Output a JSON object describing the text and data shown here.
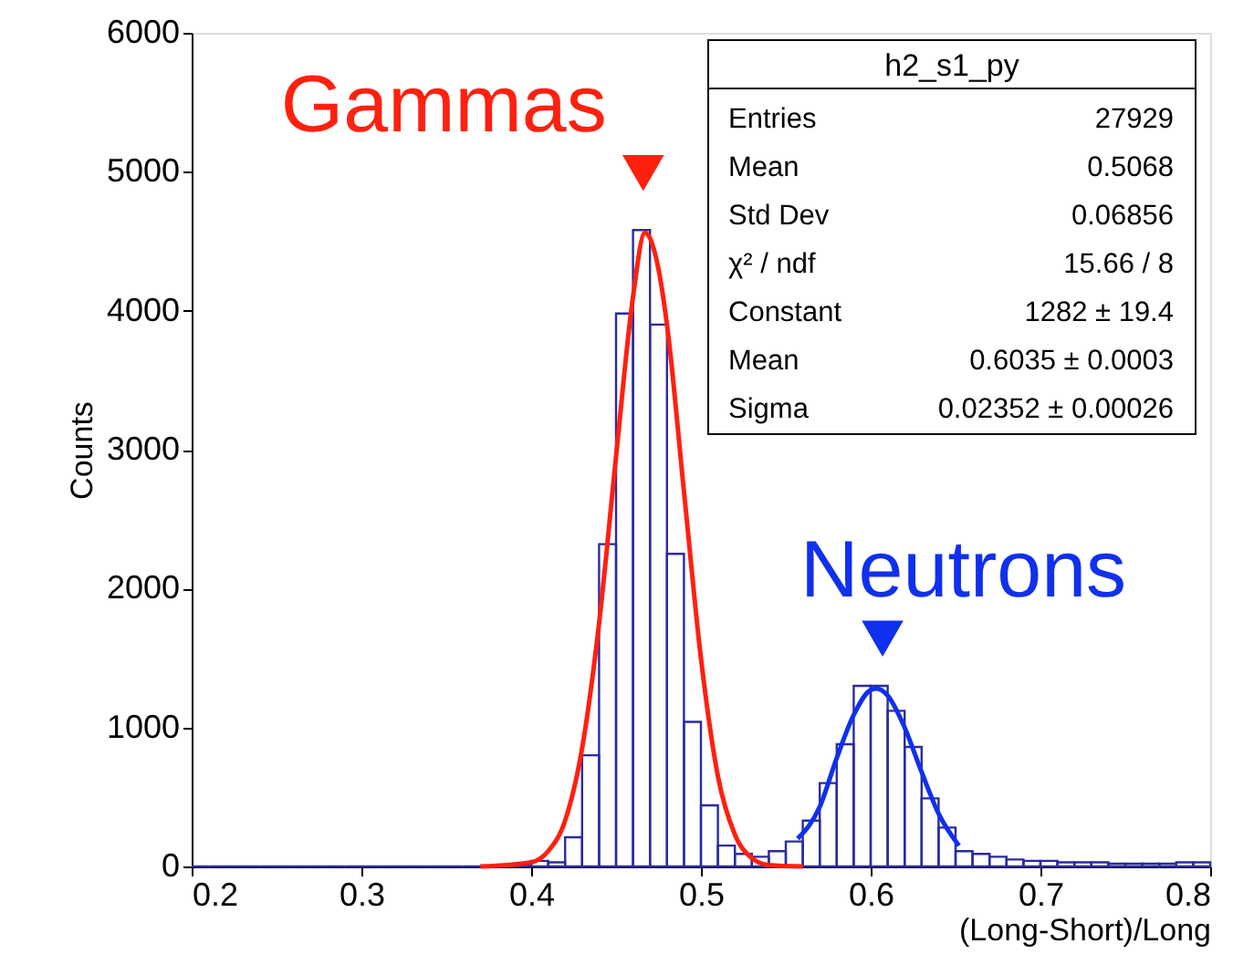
{
  "chart_data": {
    "type": "histogram",
    "xlabel": "(Long-Short)/Long",
    "ylabel": "Counts",
    "bins": [
      0.2,
      0.21,
      0.22,
      0.23,
      0.24,
      0.25,
      0.26,
      0.27,
      0.28,
      0.29,
      0.3,
      0.31,
      0.32,
      0.33,
      0.34,
      0.35,
      0.36,
      0.37,
      0.38,
      0.39,
      0.4,
      0.41,
      0.42,
      0.43,
      0.44,
      0.45,
      0.46,
      0.47,
      0.48,
      0.49,
      0.5,
      0.51,
      0.52,
      0.53,
      0.54,
      0.55,
      0.56,
      0.57,
      0.58,
      0.59,
      0.6,
      0.61,
      0.62,
      0.63,
      0.64,
      0.65,
      0.66,
      0.67,
      0.68,
      0.69,
      0.7,
      0.71,
      0.72,
      0.73,
      0.74,
      0.75,
      0.76,
      0.77,
      0.78,
      0.79,
      0.8
    ],
    "values": [
      0,
      0,
      0,
      0,
      0,
      0,
      0,
      0,
      0,
      0,
      0,
      0,
      0,
      0,
      0,
      0,
      0,
      0,
      0,
      10,
      40,
      30,
      210,
      800,
      2320,
      3980,
      4580,
      3900,
      2250,
      1040,
      440,
      150,
      90,
      70,
      110,
      180,
      330,
      600,
      880,
      1300,
      1300,
      1120,
      860,
      490,
      280,
      110,
      90,
      70,
      50,
      40,
      40,
      30,
      30,
      30,
      20,
      20,
      20,
      20,
      30,
      30
    ],
    "color": "#2b2b9e",
    "series": [
      {
        "type": "line",
        "color": "#ff2010",
        "x": [
          0.37,
          0.4,
          0.41,
          0.42,
          0.43,
          0.44,
          0.45,
          0.46,
          0.467,
          0.475,
          0.48,
          0.49,
          0.5,
          0.51,
          0.52,
          0.53,
          0.54,
          0.56
        ],
        "values": [
          0,
          30,
          110,
          330,
          850,
          1750,
          2950,
          4100,
          4560,
          4300,
          3900,
          2700,
          1500,
          650,
          230,
          60,
          10,
          0
        ]
      },
      {
        "type": "line",
        "color": "#1030ee",
        "x": [
          0.557,
          0.57,
          0.58,
          0.59,
          0.6,
          0.6035,
          0.61,
          0.62,
          0.63,
          0.64,
          0.652
        ],
        "values": [
          200,
          430,
          780,
          1090,
          1270,
          1280,
          1230,
          1000,
          680,
          380,
          150
        ]
      }
    ],
    "annotations": [
      {
        "text": "Gammas",
        "x": 0.466,
        "y": 4990
      },
      {
        "text": "Neutrons",
        "x": 0.607,
        "y": 1640
      },
      "h2_s1_py",
      "Entries",
      "27929",
      "Mean",
      "0.5068",
      "Std Dev",
      "0.06856",
      "χ² / ndf",
      "15.66 / 8",
      "Constant",
      "1282 ± 19.4",
      "Mean",
      "0.6035 ± 0.0003",
      "Sigma",
      "0.02352 ± 0.00026"
    ],
    "xlim": [
      0.2,
      0.8
    ],
    "ylim": [
      0,
      6000
    ],
    "xticks": [
      0.2,
      0.3,
      0.4,
      0.5,
      0.6,
      0.7,
      0.8
    ],
    "yticks": [
      0,
      1000,
      2000,
      3000,
      4000,
      5000,
      6000
    ],
    "grid": false
  }
}
